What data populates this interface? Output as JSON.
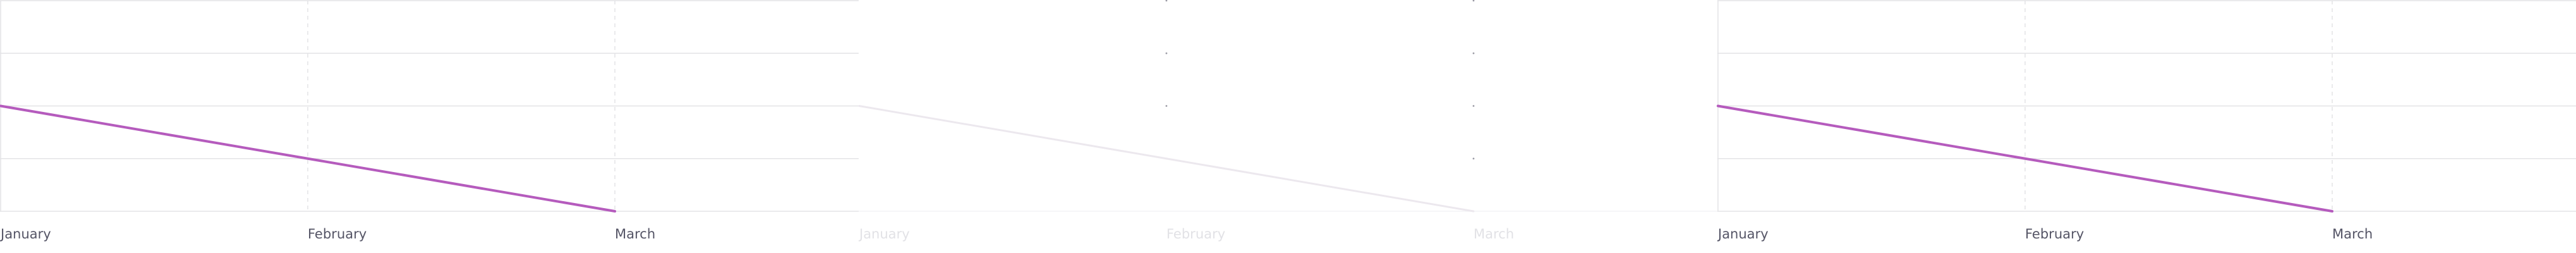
{
  "colors": {
    "line": "#b55bbd",
    "line_faded": "#ece8ee",
    "grid": "#e3e3e6",
    "grid_faded": "#f4f4f5",
    "tick_label": "#555566",
    "tick_label_faded": "#e2e2e6",
    "background": "#ffffff"
  },
  "chart_data": [
    {
      "type": "line",
      "state": "normal",
      "categories": [
        "January",
        "February",
        "March"
      ],
      "series": [
        {
          "values": [
            2,
            1,
            0
          ]
        }
      ],
      "title": "",
      "xlabel": "",
      "ylabel": "",
      "ylim": [
        0,
        4
      ],
      "grid": true,
      "legend": "none"
    },
    {
      "type": "line",
      "state": "faded",
      "categories": [
        "January",
        "February",
        "March"
      ],
      "series": [
        {
          "values": [
            2,
            1,
            0
          ]
        }
      ],
      "title": "",
      "xlabel": "",
      "ylabel": "",
      "ylim": [
        0,
        4
      ],
      "grid": false,
      "legend": "none"
    },
    {
      "type": "line",
      "state": "normal",
      "categories": [
        "January",
        "February",
        "March"
      ],
      "series": [
        {
          "values": [
            2,
            1,
            0
          ]
        }
      ],
      "title": "",
      "xlabel": "",
      "ylabel": "",
      "ylim": [
        0,
        4
      ],
      "grid": true,
      "legend": "none"
    }
  ]
}
